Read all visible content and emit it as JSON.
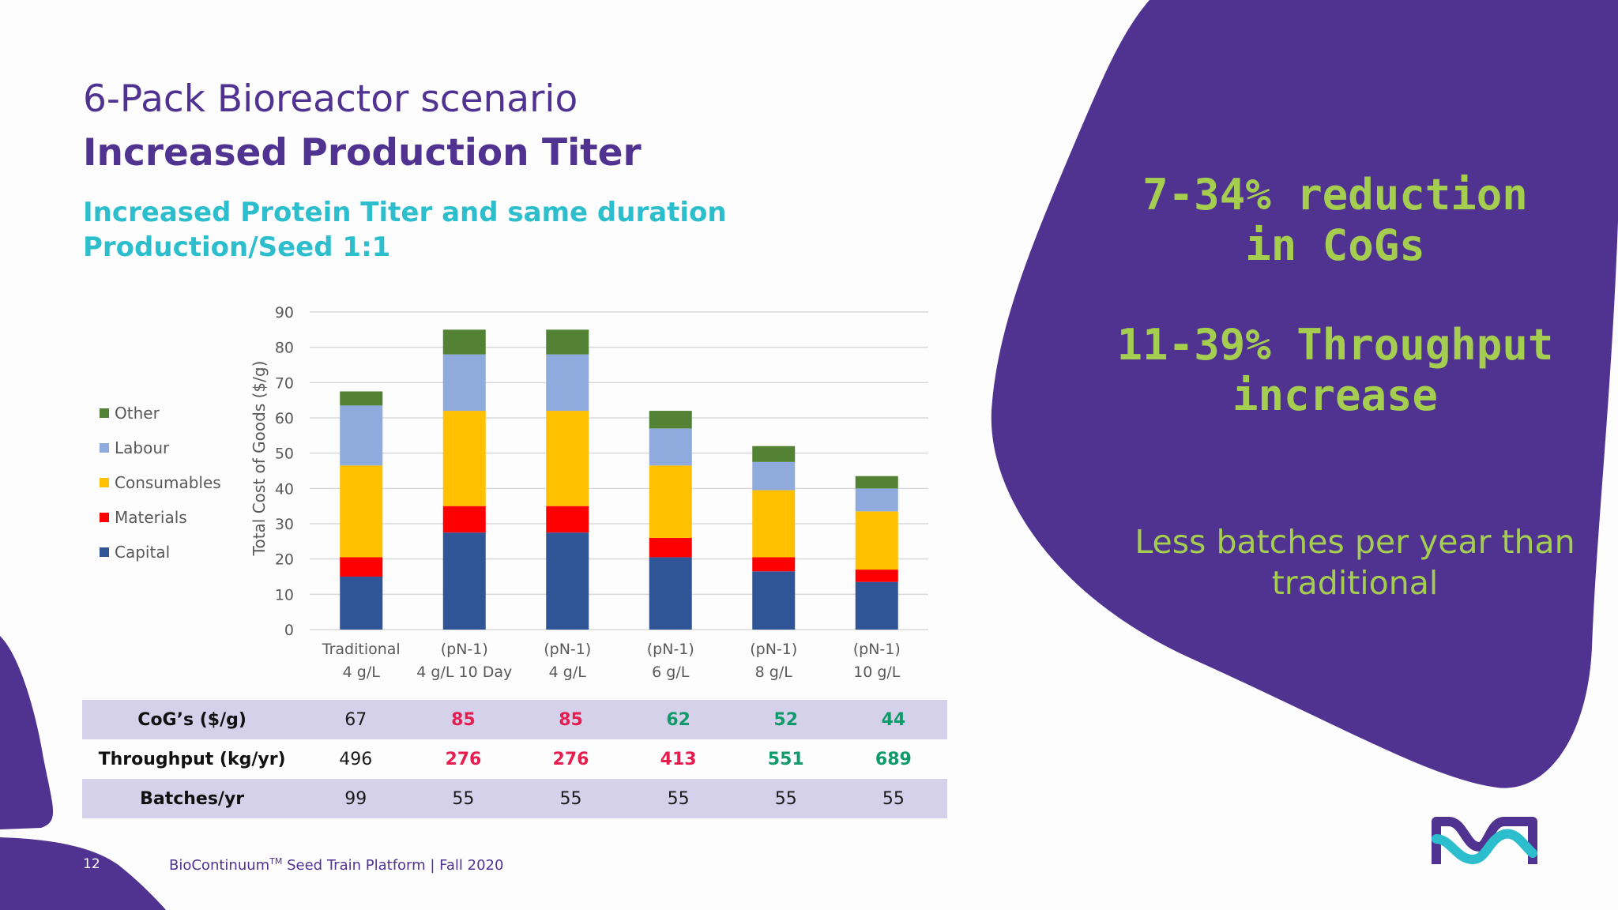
{
  "slide": {
    "title": "6-Pack Bioreactor scenario",
    "heading": "Increased Production Titer",
    "subtitle_line1": "Increased Protein Titer and same duration",
    "subtitle_line2": "Production/Seed 1:1",
    "page_number": "12",
    "footer_brand": "BioContinuum",
    "footer_tm": "TM",
    "footer_rest": " Seed Train Platform | Fall 2020"
  },
  "callouts": {
    "cogs_line1": "7-34% reduction",
    "cogs_line2": "in CoGs",
    "throughput_line1": "11-39% Throughput",
    "throughput_line2": "increase",
    "batches_line1": "Less batches per year than",
    "batches_line2": "traditional"
  },
  "colors": {
    "brand_purple": "#503291",
    "brand_cyan": "#2dbecd",
    "brand_green": "#a5cd50",
    "table_shade": "#d6d1eb",
    "red_value": "#e61e50",
    "green_value": "#0f9a6a"
  },
  "chart_data": {
    "type": "bar",
    "stacked": true,
    "ylabel": "Total Cost of Goods ($/g)",
    "ylim": [
      0,
      90
    ],
    "yticks": [
      0,
      10,
      20,
      30,
      40,
      50,
      60,
      70,
      80,
      90
    ],
    "grid": true,
    "legend_position": "left",
    "categories": [
      [
        "Traditional",
        "4 g/L"
      ],
      [
        "(pN-1)",
        "4 g/L 10 Day"
      ],
      [
        "(pN-1)",
        "4 g/L"
      ],
      [
        "(pN-1)",
        "6 g/L"
      ],
      [
        "(pN-1)",
        "8 g/L"
      ],
      [
        "(pN-1)",
        "10 g/L"
      ]
    ],
    "series": [
      {
        "name": "Capital",
        "color": "#2f5597",
        "values": [
          15,
          27.5,
          27.5,
          20.5,
          16.5,
          13.5
        ]
      },
      {
        "name": "Materials",
        "color": "#ff0000",
        "values": [
          5.5,
          7.5,
          7.5,
          5.5,
          4,
          3.5
        ]
      },
      {
        "name": "Consumables",
        "color": "#ffc000",
        "values": [
          26,
          27,
          27,
          20.5,
          19,
          16.5
        ]
      },
      {
        "name": "Labour",
        "color": "#8faadc",
        "values": [
          17,
          16,
          16,
          10.5,
          8,
          6.5
        ]
      },
      {
        "name": "Other",
        "color": "#548235",
        "values": [
          4,
          7,
          7,
          5,
          4.5,
          3.5
        ]
      }
    ],
    "legend_order": [
      "Other",
      "Labour",
      "Consumables",
      "Materials",
      "Capital"
    ]
  },
  "table": {
    "rows": [
      {
        "label": "CoG’s ($/g)",
        "values": [
          "67",
          "85",
          "85",
          "62",
          "52",
          "44"
        ],
        "styles": [
          "",
          "red",
          "red",
          "grn",
          "grn",
          "grn"
        ]
      },
      {
        "label": "Throughput (kg/yr)",
        "values": [
          "496",
          "276",
          "276",
          "413",
          "551",
          "689"
        ],
        "styles": [
          "",
          "red",
          "red",
          "red",
          "grn",
          "grn"
        ]
      },
      {
        "label": "Batches/yr",
        "values": [
          "99",
          "55",
          "55",
          "55",
          "55",
          "55"
        ],
        "styles": [
          "",
          "",
          "",
          "",
          "",
          ""
        ]
      }
    ]
  }
}
